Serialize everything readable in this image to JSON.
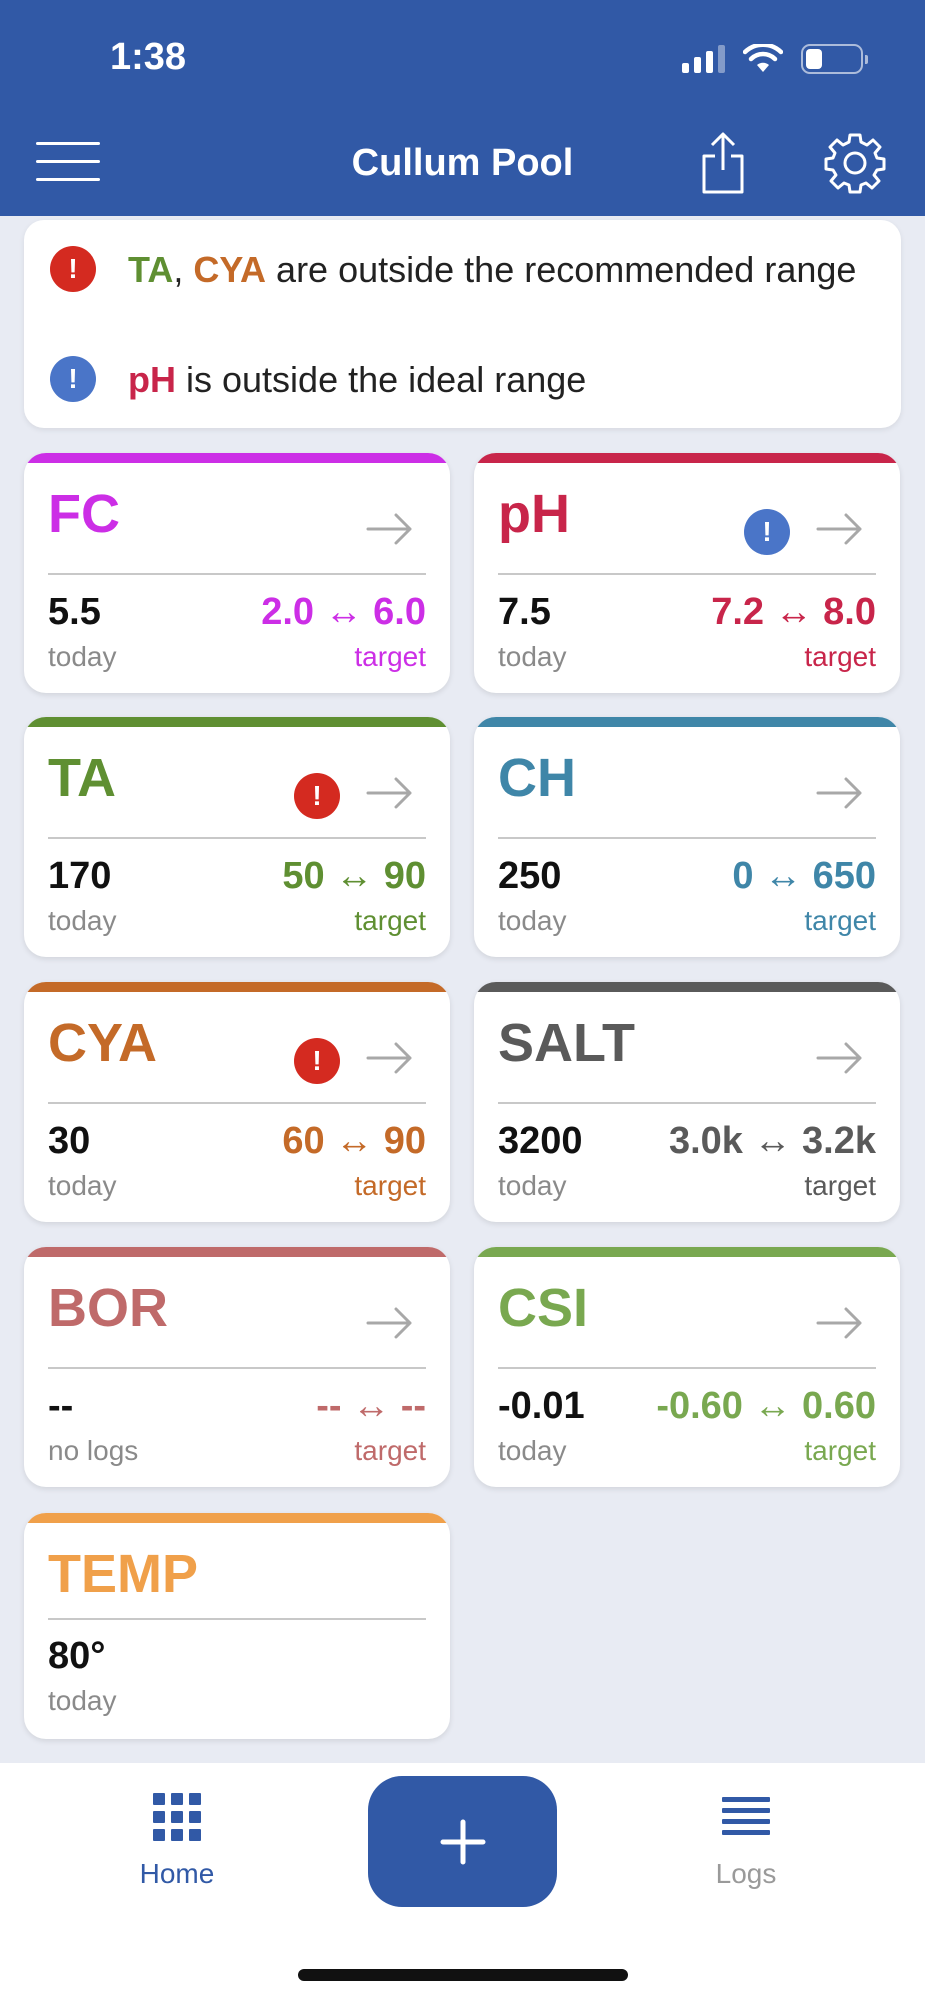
{
  "status_bar": {
    "time": "1:38"
  },
  "header": {
    "title": "Cullum Pool"
  },
  "alerts": [
    {
      "severity": "red",
      "icon": "exclamation-icon",
      "parts": [
        {
          "text": "TA",
          "color": "#5f8f32",
          "bold": true
        },
        {
          "text": ", ",
          "color": "#222"
        },
        {
          "text": "CYA",
          "color": "#c46a28",
          "bold": true
        },
        {
          "text": " are outside the recommended range",
          "color": "#222"
        }
      ]
    },
    {
      "severity": "blue",
      "icon": "exclamation-icon",
      "parts": [
        {
          "text": "pH",
          "color": "#c8254a",
          "bold": true
        },
        {
          "text": " is outside the ideal range",
          "color": "#222"
        }
      ]
    }
  ],
  "cards": [
    {
      "key": "fc",
      "name": "FC",
      "color": "#cc2ee6",
      "warning": null,
      "value": "5.5",
      "value_label": "today",
      "range": "2.0 ↔ 6.0",
      "target_label": "target"
    },
    {
      "key": "ph",
      "name": "pH",
      "color": "#c8254a",
      "warning": "blue",
      "value": "7.5",
      "value_label": "today",
      "range": "7.2 ↔ 8.0",
      "target_label": "target"
    },
    {
      "key": "ta",
      "name": "TA",
      "color": "#5f8f32",
      "warning": "red",
      "value": "170",
      "value_label": "today",
      "range": "50 ↔ 90",
      "target_label": "target"
    },
    {
      "key": "ch",
      "name": "CH",
      "color": "#3f86a8",
      "warning": null,
      "value": "250",
      "value_label": "today",
      "range": "0 ↔ 650",
      "target_label": "target"
    },
    {
      "key": "cya",
      "name": "CYA",
      "color": "#c46a28",
      "warning": "red",
      "value": "30",
      "value_label": "today",
      "range": "60 ↔ 90",
      "target_label": "target"
    },
    {
      "key": "salt",
      "name": "SALT",
      "color": "#5a5a5a",
      "warning": null,
      "value": "3200",
      "value_label": "today",
      "range": "3.0k ↔ 3.2k",
      "target_label": "target"
    },
    {
      "key": "bor",
      "name": "BOR",
      "color": "#bf6a6a",
      "warning": null,
      "value": "--",
      "value_label": "no logs",
      "range": "-- ↔ --",
      "target_label": "target"
    },
    {
      "key": "csi",
      "name": "CSI",
      "color": "#79a850",
      "warning": null,
      "value": "-0.01",
      "value_label": "today",
      "range": "-0.60 ↔ 0.60",
      "target_label": "target"
    }
  ],
  "temp_card": {
    "name": "TEMP",
    "color": "#f0a04a",
    "value": "80°",
    "value_label": "today"
  },
  "tabbar": {
    "home": {
      "label": "Home",
      "color": "#3159a6"
    },
    "logs": {
      "label": "Logs",
      "color": "#9a9a9a"
    },
    "add_symbol": "+"
  },
  "colors": {
    "accent": "#3159a6",
    "background": "#e8ebf3",
    "warning_red": "#d42a20",
    "warning_blue": "#4a75c8"
  }
}
